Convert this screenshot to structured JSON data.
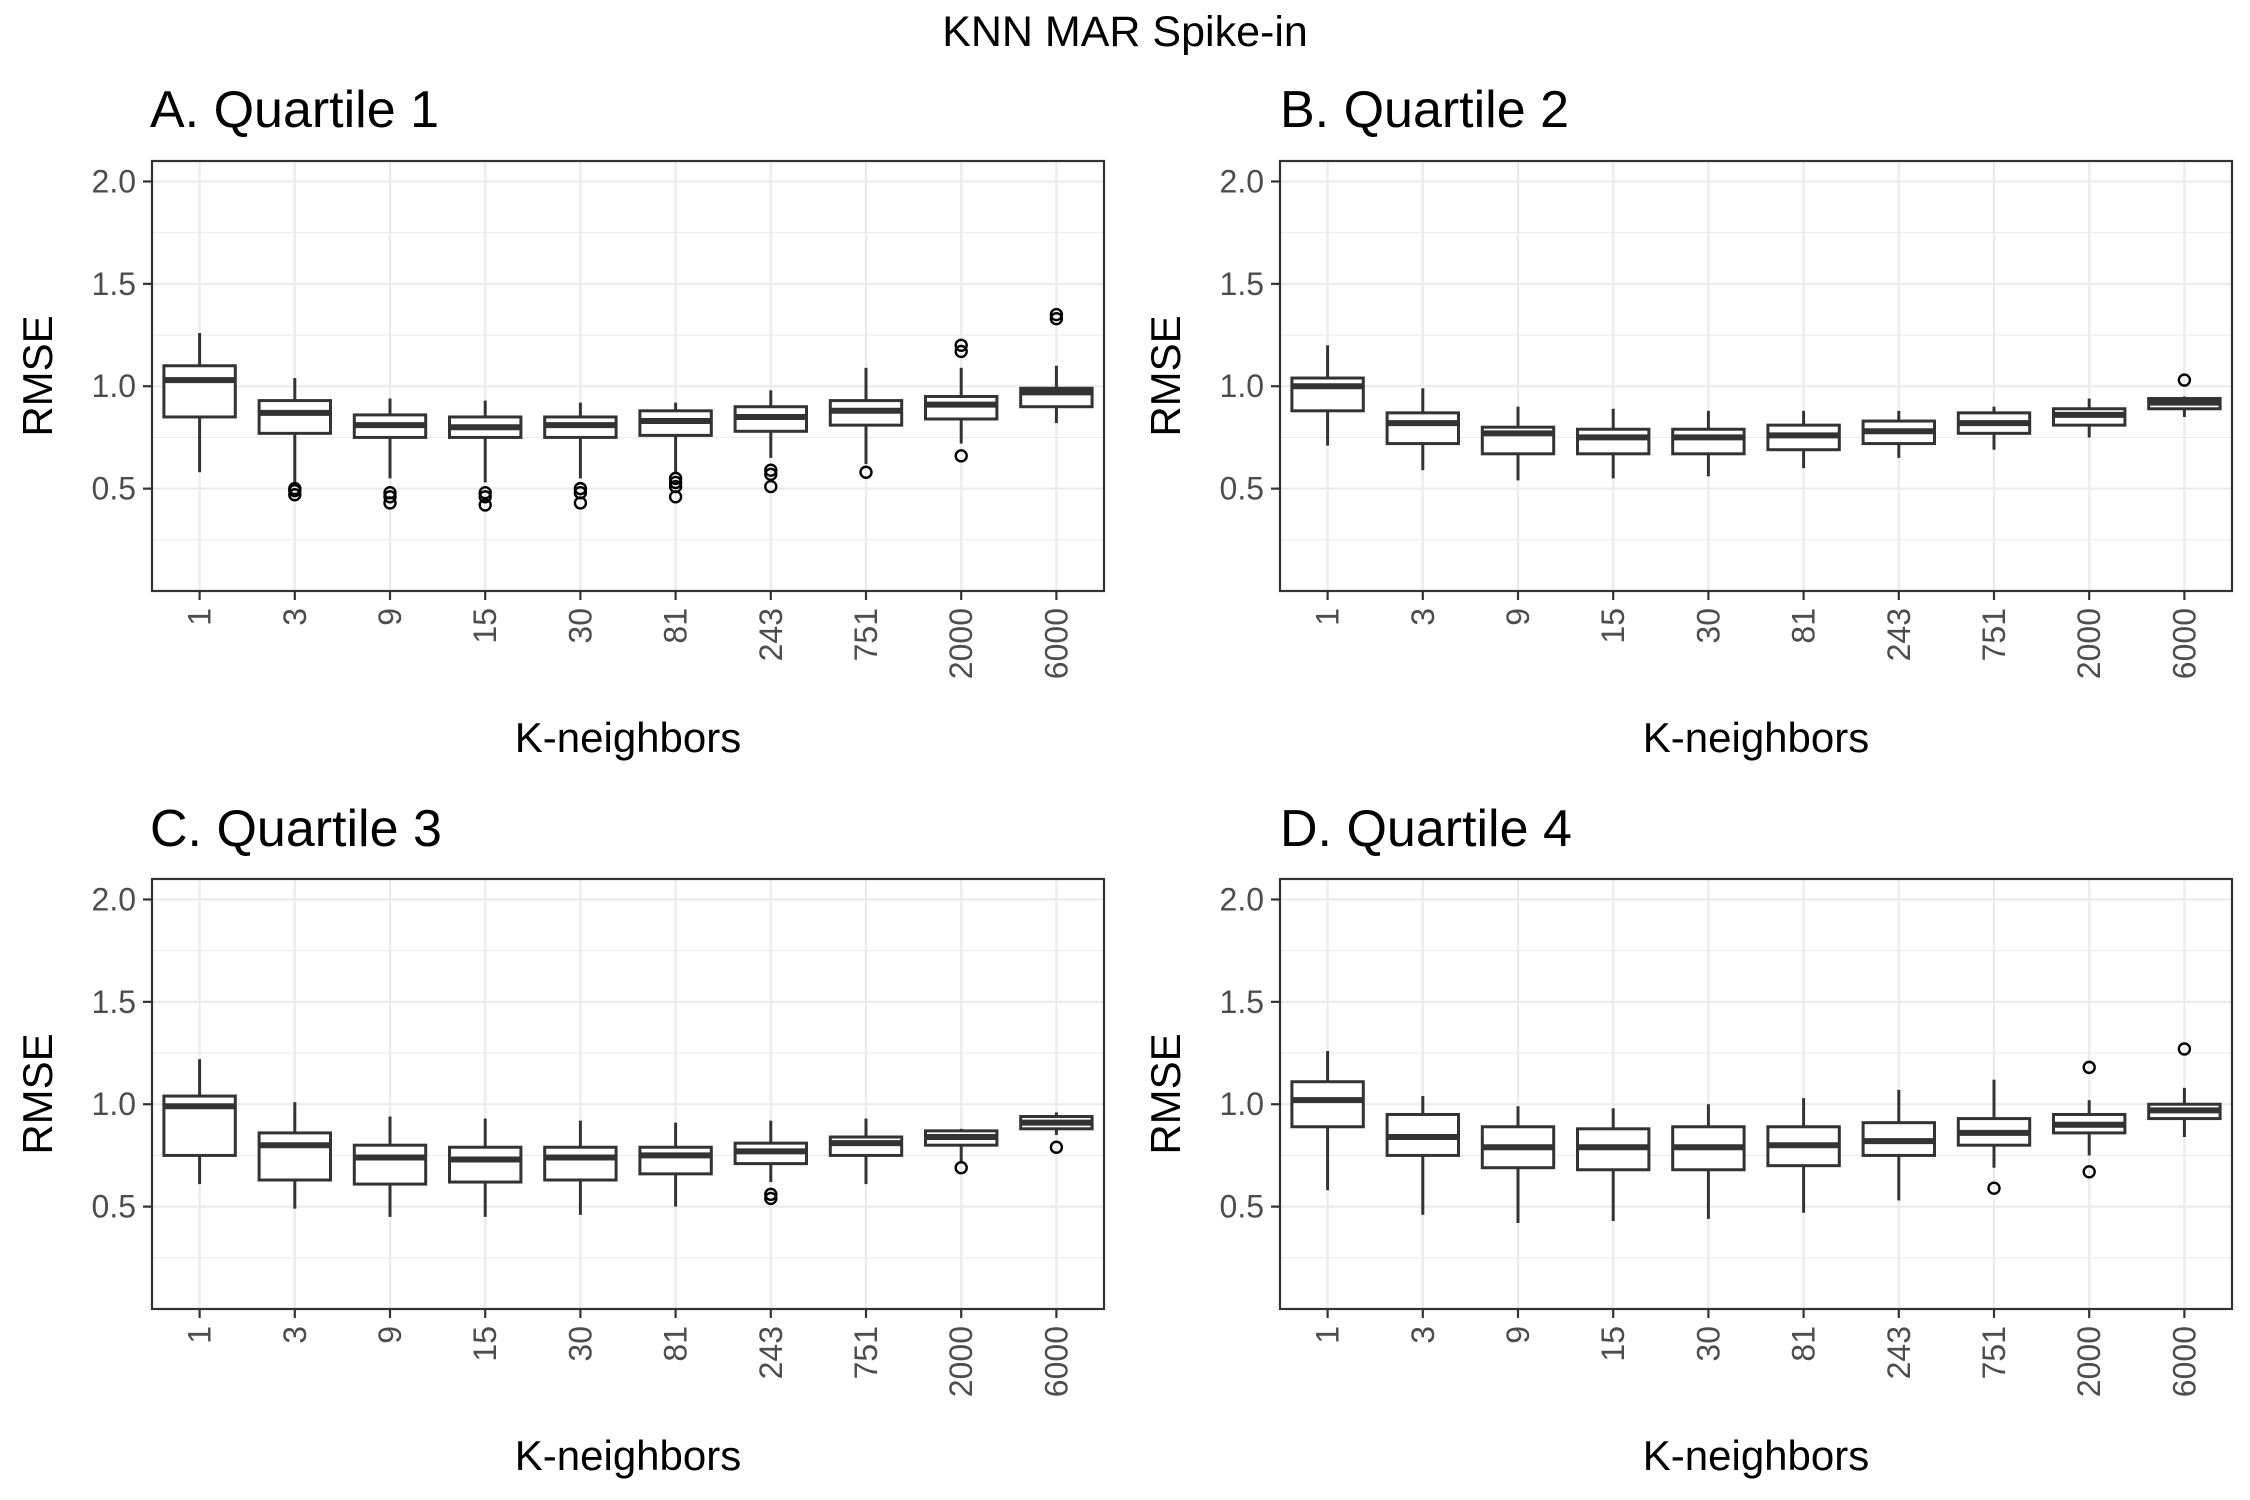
{
  "title": "KNN MAR Spike-in",
  "chart_data": [
    {
      "type": "box",
      "panel_title": "A. Quartile 1",
      "xlabel": "K-neighbors",
      "ylabel": "RMSE",
      "ylim": [
        0,
        2.1
      ],
      "yticks": [
        "0.5",
        "1.0",
        "1.5",
        "2.0"
      ],
      "grid": true,
      "categories": [
        "1",
        "3",
        "9",
        "15",
        "30",
        "81",
        "243",
        "751",
        "2000",
        "6000"
      ],
      "boxes": [
        {
          "min": 0.58,
          "q1": 0.85,
          "median": 1.03,
          "q3": 1.1,
          "max": 1.26,
          "outliers": []
        },
        {
          "min": 0.53,
          "q1": 0.77,
          "median": 0.87,
          "q3": 0.93,
          "max": 1.04,
          "outliers": [
            0.47,
            0.49,
            0.5
          ]
        },
        {
          "min": 0.55,
          "q1": 0.75,
          "median": 0.81,
          "q3": 0.86,
          "max": 0.94,
          "outliers": [
            0.43,
            0.46,
            0.48
          ]
        },
        {
          "min": 0.53,
          "q1": 0.75,
          "median": 0.8,
          "q3": 0.85,
          "max": 0.93,
          "outliers": [
            0.42,
            0.46,
            0.48
          ]
        },
        {
          "min": 0.55,
          "q1": 0.75,
          "median": 0.81,
          "q3": 0.85,
          "max": 0.92,
          "outliers": [
            0.43,
            0.48,
            0.5
          ]
        },
        {
          "min": 0.58,
          "q1": 0.76,
          "median": 0.83,
          "q3": 0.88,
          "max": 0.92,
          "outliers": [
            0.46,
            0.51,
            0.53,
            0.55
          ]
        },
        {
          "min": 0.65,
          "q1": 0.78,
          "median": 0.85,
          "q3": 0.9,
          "max": 0.98,
          "outliers": [
            0.51,
            0.57,
            0.59
          ]
        },
        {
          "min": 0.62,
          "q1": 0.81,
          "median": 0.88,
          "q3": 0.93,
          "max": 1.09,
          "outliers": [
            0.58
          ]
        },
        {
          "min": 0.72,
          "q1": 0.84,
          "median": 0.91,
          "q3": 0.95,
          "max": 1.09,
          "outliers": [
            0.66,
            1.17,
            1.2
          ]
        },
        {
          "min": 0.82,
          "q1": 0.9,
          "median": 0.97,
          "q3": 0.99,
          "max": 1.1,
          "outliers": [
            1.33,
            1.35
          ]
        }
      ]
    },
    {
      "type": "box",
      "panel_title": "B. Quartile 2",
      "xlabel": "K-neighbors",
      "ylabel": "RMSE",
      "ylim": [
        0,
        2.1
      ],
      "yticks": [
        "0.5",
        "1.0",
        "1.5",
        "2.0"
      ],
      "grid": true,
      "categories": [
        "1",
        "3",
        "9",
        "15",
        "30",
        "81",
        "243",
        "751",
        "2000",
        "6000"
      ],
      "boxes": [
        {
          "min": 0.71,
          "q1": 0.88,
          "median": 1.0,
          "q3": 1.04,
          "max": 1.2,
          "outliers": []
        },
        {
          "min": 0.59,
          "q1": 0.72,
          "median": 0.82,
          "q3": 0.87,
          "max": 0.99,
          "outliers": []
        },
        {
          "min": 0.54,
          "q1": 0.67,
          "median": 0.77,
          "q3": 0.8,
          "max": 0.9,
          "outliers": []
        },
        {
          "min": 0.55,
          "q1": 0.67,
          "median": 0.75,
          "q3": 0.79,
          "max": 0.89,
          "outliers": []
        },
        {
          "min": 0.56,
          "q1": 0.67,
          "median": 0.75,
          "q3": 0.79,
          "max": 0.88,
          "outliers": []
        },
        {
          "min": 0.6,
          "q1": 0.69,
          "median": 0.76,
          "q3": 0.81,
          "max": 0.88,
          "outliers": []
        },
        {
          "min": 0.65,
          "q1": 0.72,
          "median": 0.78,
          "q3": 0.83,
          "max": 0.88,
          "outliers": []
        },
        {
          "min": 0.69,
          "q1": 0.77,
          "median": 0.82,
          "q3": 0.87,
          "max": 0.9,
          "outliers": []
        },
        {
          "min": 0.75,
          "q1": 0.81,
          "median": 0.86,
          "q3": 0.89,
          "max": 0.94,
          "outliers": []
        },
        {
          "min": 0.85,
          "q1": 0.89,
          "median": 0.92,
          "q3": 0.94,
          "max": 0.95,
          "outliers": [
            1.03
          ]
        }
      ]
    },
    {
      "type": "box",
      "panel_title": "C. Quartile 3",
      "xlabel": "K-neighbors",
      "ylabel": "RMSE",
      "ylim": [
        0,
        2.1
      ],
      "yticks": [
        "0.5",
        "1.0",
        "1.5",
        "2.0"
      ],
      "grid": true,
      "categories": [
        "1",
        "3",
        "9",
        "15",
        "30",
        "81",
        "243",
        "751",
        "2000",
        "6000"
      ],
      "boxes": [
        {
          "min": 0.61,
          "q1": 0.75,
          "median": 0.99,
          "q3": 1.04,
          "max": 1.22,
          "outliers": []
        },
        {
          "min": 0.49,
          "q1": 0.63,
          "median": 0.8,
          "q3": 0.86,
          "max": 1.01,
          "outliers": []
        },
        {
          "min": 0.45,
          "q1": 0.61,
          "median": 0.74,
          "q3": 0.8,
          "max": 0.94,
          "outliers": []
        },
        {
          "min": 0.45,
          "q1": 0.62,
          "median": 0.73,
          "q3": 0.79,
          "max": 0.93,
          "outliers": []
        },
        {
          "min": 0.46,
          "q1": 0.63,
          "median": 0.74,
          "q3": 0.79,
          "max": 0.92,
          "outliers": []
        },
        {
          "min": 0.5,
          "q1": 0.66,
          "median": 0.75,
          "q3": 0.79,
          "max": 0.91,
          "outliers": []
        },
        {
          "min": 0.62,
          "q1": 0.71,
          "median": 0.77,
          "q3": 0.81,
          "max": 0.92,
          "outliers": [
            0.54,
            0.56
          ]
        },
        {
          "min": 0.61,
          "q1": 0.75,
          "median": 0.81,
          "q3": 0.84,
          "max": 0.93,
          "outliers": []
        },
        {
          "min": 0.72,
          "q1": 0.8,
          "median": 0.84,
          "q3": 0.87,
          "max": 0.88,
          "outliers": [
            0.69
          ]
        },
        {
          "min": 0.85,
          "q1": 0.88,
          "median": 0.91,
          "q3": 0.94,
          "max": 0.96,
          "outliers": [
            0.79
          ]
        }
      ]
    },
    {
      "type": "box",
      "panel_title": "D. Quartile 4",
      "xlabel": "K-neighbors",
      "ylabel": "RMSE",
      "ylim": [
        0,
        2.1
      ],
      "yticks": [
        "0.5",
        "1.0",
        "1.5",
        "2.0"
      ],
      "grid": true,
      "categories": [
        "1",
        "3",
        "9",
        "15",
        "30",
        "81",
        "243",
        "751",
        "2000",
        "6000"
      ],
      "boxes": [
        {
          "min": 0.58,
          "q1": 0.89,
          "median": 1.02,
          "q3": 1.11,
          "max": 1.26,
          "outliers": []
        },
        {
          "min": 0.46,
          "q1": 0.75,
          "median": 0.84,
          "q3": 0.95,
          "max": 1.04,
          "outliers": []
        },
        {
          "min": 0.42,
          "q1": 0.69,
          "median": 0.79,
          "q3": 0.89,
          "max": 0.99,
          "outliers": []
        },
        {
          "min": 0.43,
          "q1": 0.68,
          "median": 0.79,
          "q3": 0.88,
          "max": 0.98,
          "outliers": []
        },
        {
          "min": 0.44,
          "q1": 0.68,
          "median": 0.79,
          "q3": 0.89,
          "max": 1.0,
          "outliers": []
        },
        {
          "min": 0.47,
          "q1": 0.7,
          "median": 0.8,
          "q3": 0.89,
          "max": 1.03,
          "outliers": []
        },
        {
          "min": 0.53,
          "q1": 0.75,
          "median": 0.82,
          "q3": 0.91,
          "max": 1.07,
          "outliers": []
        },
        {
          "min": 0.69,
          "q1": 0.8,
          "median": 0.86,
          "q3": 0.93,
          "max": 1.12,
          "outliers": [
            0.59
          ]
        },
        {
          "min": 0.75,
          "q1": 0.86,
          "median": 0.9,
          "q3": 0.95,
          "max": 1.02,
          "outliers": [
            0.67,
            1.18
          ]
        },
        {
          "min": 0.84,
          "q1": 0.93,
          "median": 0.97,
          "q3": 1.0,
          "max": 1.08,
          "outliers": [
            1.27
          ]
        }
      ]
    }
  ]
}
